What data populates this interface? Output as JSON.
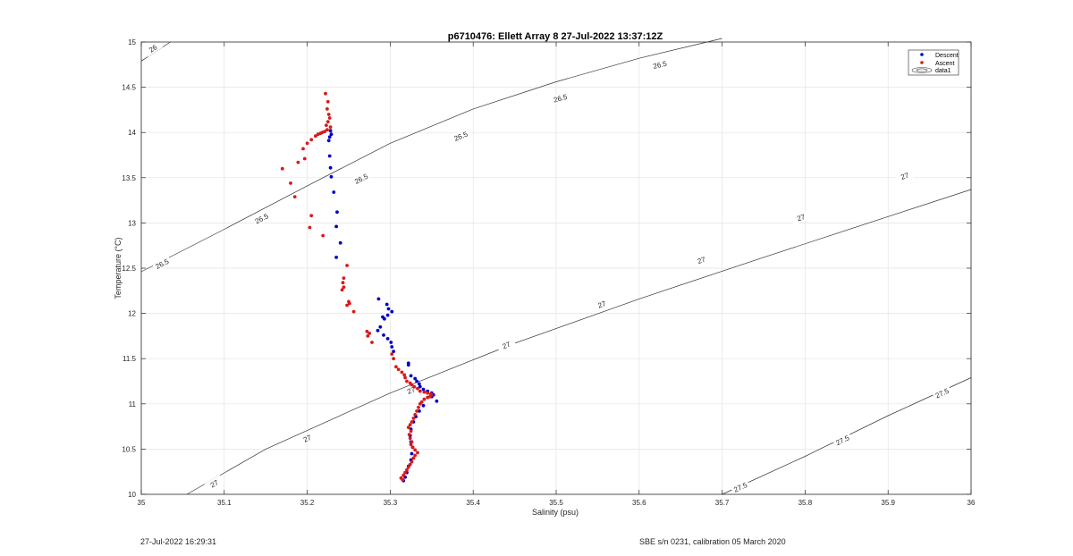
{
  "footer": {
    "timestamp": "27-Jul-2022 16:29:31",
    "calibration": "SBE s/n 0231, calibration 05 March 2020"
  },
  "chart_data": {
    "type": "scatter",
    "title": "p6710476: Ellett Array 8 27-Jul-2022 13:37:12Z",
    "xlabel": "Salinity (psu)",
    "ylabel": "Temperature (°C)",
    "xlim": [
      35,
      36
    ],
    "ylim": [
      10,
      15
    ],
    "xticks": [
      "35",
      "35.1",
      "35.2",
      "35.3",
      "35.4",
      "35.5",
      "35.6",
      "35.7",
      "35.8",
      "35.9",
      "36"
    ],
    "yticks": [
      "10",
      "10.5",
      "11",
      "11.5",
      "12",
      "12.5",
      "13",
      "13.5",
      "14",
      "14.5",
      "15"
    ],
    "grid": true,
    "legend": {
      "placement": "top-right",
      "entries": [
        "Descent",
        "Ascent",
        "data1"
      ]
    },
    "colors": {
      "descent": "#0000c8",
      "ascent": "#d81a1a",
      "contour": "#333333",
      "grid": "#e3e3e3"
    },
    "density_contours": [
      {
        "level": "26",
        "path": [
          [
            35.0,
            14.79
          ],
          [
            35.035,
            15.0
          ]
        ],
        "labels": [
          {
            "x": 35.014,
            "y": 14.93,
            "text": "26"
          }
        ]
      },
      {
        "level": "26.5",
        "path": [
          [
            35.0,
            12.46
          ],
          [
            35.1,
            12.93
          ],
          [
            35.2,
            13.41
          ],
          [
            35.3,
            13.88
          ],
          [
            35.4,
            14.26
          ],
          [
            35.5,
            14.56
          ],
          [
            35.6,
            14.82
          ],
          [
            35.7,
            15.04
          ]
        ],
        "labels": [
          {
            "x": 35.025,
            "y": 12.55,
            "text": "26.5"
          },
          {
            "x": 35.145,
            "y": 13.05,
            "text": "26.5"
          },
          {
            "x": 35.265,
            "y": 13.49,
            "text": "26.5"
          },
          {
            "x": 35.385,
            "y": 13.96,
            "text": "26.5"
          },
          {
            "x": 35.505,
            "y": 14.38,
            "text": "26.5"
          },
          {
            "x": 35.625,
            "y": 14.75,
            "text": "26.5"
          }
        ]
      },
      {
        "level": "27",
        "path": [
          [
            35.055,
            10.0
          ],
          [
            35.15,
            10.5
          ],
          [
            35.3,
            11.12
          ],
          [
            35.45,
            11.67
          ],
          [
            35.6,
            12.16
          ],
          [
            35.75,
            12.62
          ],
          [
            35.9,
            13.07
          ],
          [
            36.0,
            13.37
          ]
        ],
        "labels": [
          {
            "x": 35.088,
            "y": 10.12,
            "text": "27"
          },
          {
            "x": 35.2,
            "y": 10.62,
            "text": "27"
          },
          {
            "x": 35.325,
            "y": 11.15,
            "text": "27"
          },
          {
            "x": 35.44,
            "y": 11.65,
            "text": "27"
          },
          {
            "x": 35.555,
            "y": 12.1,
            "text": "27"
          },
          {
            "x": 35.675,
            "y": 12.59,
            "text": "27"
          },
          {
            "x": 35.795,
            "y": 13.06,
            "text": "27"
          },
          {
            "x": 35.92,
            "y": 13.52,
            "text": "27"
          }
        ]
      },
      {
        "level": "27.5",
        "path": [
          [
            35.7,
            10.0
          ],
          [
            35.8,
            10.42
          ],
          [
            35.9,
            10.87
          ],
          [
            36.0,
            11.29
          ]
        ],
        "labels": [
          {
            "x": 35.722,
            "y": 10.08,
            "text": "27.5"
          },
          {
            "x": 35.845,
            "y": 10.6,
            "text": "27.5"
          },
          {
            "x": 35.965,
            "y": 11.12,
            "text": "27.5"
          }
        ]
      }
    ],
    "series": [
      {
        "name": "Descent",
        "points": [
          [
            35.228,
            14.02
          ],
          [
            35.229,
            13.98
          ],
          [
            35.227,
            13.95
          ],
          [
            35.226,
            13.91
          ],
          [
            35.227,
            13.74
          ],
          [
            35.228,
            13.61
          ],
          [
            35.229,
            13.51
          ],
          [
            35.232,
            13.34
          ],
          [
            35.236,
            13.12
          ],
          [
            35.235,
            12.96
          ],
          [
            35.24,
            12.78
          ],
          [
            35.235,
            12.62
          ],
          [
            35.286,
            12.16
          ],
          [
            35.296,
            12.1
          ],
          [
            35.298,
            12.05
          ],
          [
            35.302,
            12.02
          ],
          [
            35.297,
            11.98
          ],
          [
            35.291,
            11.96
          ],
          [
            35.293,
            11.94
          ],
          [
            35.288,
            11.85
          ],
          [
            35.285,
            11.81
          ],
          [
            35.292,
            11.76
          ],
          [
            35.297,
            11.72
          ],
          [
            35.301,
            11.68
          ],
          [
            35.302,
            11.63
          ],
          [
            35.304,
            11.58
          ],
          [
            35.322,
            11.45
          ],
          [
            35.322,
            11.43
          ],
          [
            35.325,
            11.31
          ],
          [
            35.33,
            11.28
          ],
          [
            35.332,
            11.25
          ],
          [
            35.335,
            11.22
          ],
          [
            35.336,
            11.19
          ],
          [
            35.34,
            11.16
          ],
          [
            35.345,
            11.14
          ],
          [
            35.35,
            11.12
          ],
          [
            35.352,
            11.1
          ],
          [
            35.35,
            11.08
          ],
          [
            35.356,
            11.03
          ],
          [
            35.34,
            10.98
          ],
          [
            35.335,
            10.92
          ],
          [
            35.331,
            10.86
          ],
          [
            35.328,
            10.8
          ],
          [
            35.325,
            10.72
          ],
          [
            35.324,
            10.65
          ],
          [
            35.325,
            10.58
          ],
          [
            35.327,
            10.52
          ],
          [
            35.326,
            10.45
          ],
          [
            35.325,
            10.38
          ],
          [
            35.322,
            10.31
          ],
          [
            35.32,
            10.24
          ],
          [
            35.318,
            10.19
          ],
          [
            35.316,
            10.15
          ]
        ]
      },
      {
        "name": "Ascent",
        "points": [
          [
            35.222,
            14.43
          ],
          [
            35.225,
            14.34
          ],
          [
            35.224,
            14.26
          ],
          [
            35.226,
            14.2
          ],
          [
            35.227,
            14.16
          ],
          [
            35.225,
            14.12
          ],
          [
            35.223,
            14.08
          ],
          [
            35.228,
            14.06
          ],
          [
            35.224,
            14.03
          ],
          [
            35.221,
            14.01
          ],
          [
            35.218,
            14.0
          ],
          [
            35.216,
            13.99
          ],
          [
            35.213,
            13.98
          ],
          [
            35.21,
            13.96
          ],
          [
            35.205,
            13.92
          ],
          [
            35.2,
            13.88
          ],
          [
            35.195,
            13.82
          ],
          [
            35.197,
            13.71
          ],
          [
            35.189,
            13.67
          ],
          [
            35.17,
            13.6
          ],
          [
            35.18,
            13.44
          ],
          [
            35.185,
            13.29
          ],
          [
            35.205,
            13.08
          ],
          [
            35.203,
            12.95
          ],
          [
            35.219,
            12.86
          ],
          [
            35.248,
            12.53
          ],
          [
            35.244,
            12.39
          ],
          [
            35.243,
            12.34
          ],
          [
            35.244,
            12.29
          ],
          [
            35.242,
            12.26
          ],
          [
            35.25,
            12.13
          ],
          [
            35.251,
            12.11
          ],
          [
            35.248,
            12.09
          ],
          [
            35.256,
            12.02
          ],
          [
            35.272,
            11.8
          ],
          [
            35.275,
            11.78
          ],
          [
            35.273,
            11.75
          ],
          [
            35.278,
            11.68
          ],
          [
            35.302,
            11.55
          ],
          [
            35.304,
            11.5
          ],
          [
            35.307,
            11.41
          ],
          [
            35.31,
            11.38
          ],
          [
            35.314,
            11.35
          ],
          [
            35.317,
            11.32
          ],
          [
            35.318,
            11.29
          ],
          [
            35.32,
            11.25
          ],
          [
            35.324,
            11.23
          ],
          [
            35.326,
            11.21
          ],
          [
            35.329,
            11.19
          ],
          [
            35.333,
            11.17
          ],
          [
            35.336,
            11.14
          ],
          [
            35.341,
            11.13
          ],
          [
            35.345,
            11.12
          ],
          [
            35.349,
            11.11
          ],
          [
            35.35,
            11.1
          ],
          [
            35.348,
            11.08
          ],
          [
            35.345,
            11.07
          ],
          [
            35.341,
            11.05
          ],
          [
            35.338,
            11.02
          ],
          [
            35.336,
            11.0
          ],
          [
            35.334,
            10.96
          ],
          [
            35.332,
            10.92
          ],
          [
            35.33,
            10.88
          ],
          [
            35.328,
            10.84
          ],
          [
            35.326,
            10.8
          ],
          [
            35.324,
            10.77
          ],
          [
            35.322,
            10.74
          ],
          [
            35.325,
            10.7
          ],
          [
            35.323,
            10.66
          ],
          [
            35.324,
            10.62
          ],
          [
            35.326,
            10.58
          ],
          [
            35.325,
            10.55
          ],
          [
            35.327,
            10.52
          ],
          [
            35.33,
            10.49
          ],
          [
            35.333,
            10.46
          ],
          [
            35.33,
            10.43
          ],
          [
            35.328,
            10.4
          ],
          [
            35.326,
            10.36
          ],
          [
            35.324,
            10.33
          ],
          [
            35.322,
            10.3
          ],
          [
            35.32,
            10.27
          ],
          [
            35.318,
            10.24
          ],
          [
            35.316,
            10.21
          ],
          [
            35.313,
            10.18
          ],
          [
            35.315,
            10.16
          ]
        ]
      }
    ]
  }
}
